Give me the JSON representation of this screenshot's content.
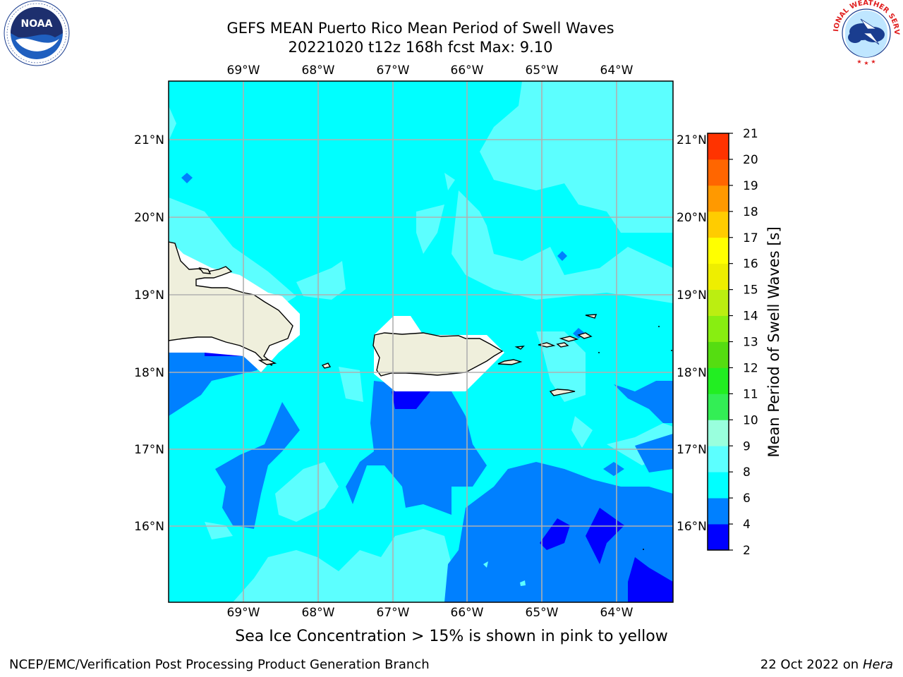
{
  "title": {
    "line1": "GEFS MEAN Puerto Rico Mean Period of Swell Waves",
    "line2": "20221020 t12z 168h fcst   Max: 9.10"
  },
  "map": {
    "lon_labels": [
      "69°W",
      "68°W",
      "67°W",
      "66°W",
      "65°W",
      "64°W"
    ],
    "lat_labels": [
      "21°N",
      "20°N",
      "19°N",
      "18°N",
      "17°N",
      "16°N"
    ],
    "colors": {
      "land": "#efefdc",
      "cyan": "#00ffff",
      "light_cyan": "#5cffff",
      "blue": "#0080ff",
      "dark_blue": "#0000ff",
      "grid": "#b0b0b0"
    }
  },
  "colorbar": {
    "label": "Mean Period of Swell Waves [s]",
    "ticks": [
      "2",
      "4",
      "6",
      "8",
      "9",
      "10",
      "11",
      "12",
      "13",
      "14",
      "15",
      "16",
      "17",
      "18",
      "19",
      "20",
      "21"
    ],
    "colors": [
      "#0000ff",
      "#0080ff",
      "#00ffff",
      "#5cffff",
      "#99ffdd",
      "#33ee55",
      "#22ee22",
      "#55dd11",
      "#88ee11",
      "#bbee11",
      "#eeee00",
      "#ffff00",
      "#ffcc00",
      "#ff9900",
      "#ff6600",
      "#ff3300",
      "#ff0000"
    ]
  },
  "ice_note": "Sea Ice Concentration > 15% is shown in pink to yellow",
  "footer": {
    "credit": "NCEP/EMC/Verification Post Processing Product Generation Branch",
    "date": "22 Oct 2022 on",
    "machine": "Hera"
  },
  "logos": {
    "noaa_text": "NOAA",
    "nws_text": "NATIONAL WEATHER SERVICE"
  }
}
